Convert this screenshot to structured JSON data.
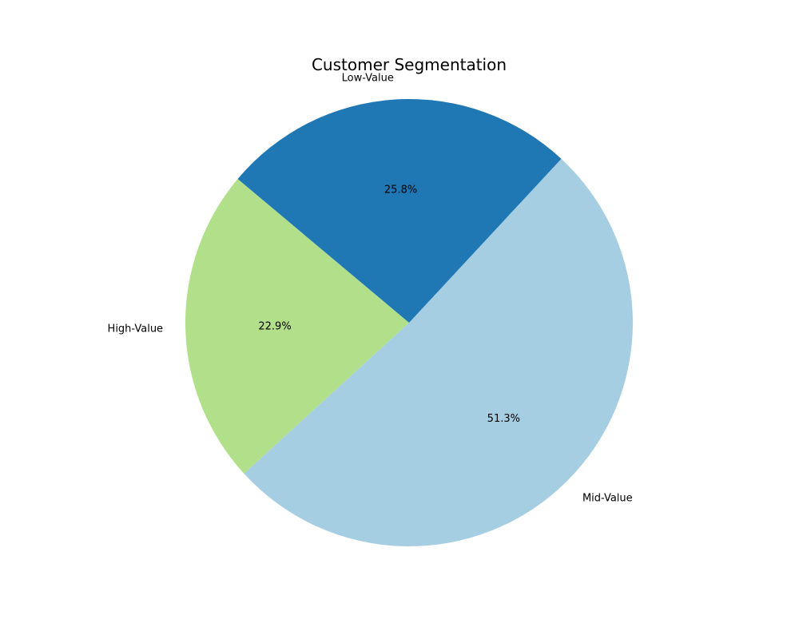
{
  "chart_data": {
    "type": "pie",
    "title": "Customer Segmentation",
    "slices": [
      {
        "label": "High-Value",
        "value": 22.9,
        "pct_label": "22.9%",
        "color": "#b2df8a"
      },
      {
        "label": "Mid-Value",
        "value": 51.3,
        "pct_label": "51.3%",
        "color": "#a6cee3"
      },
      {
        "label": "Low-Value",
        "value": 25.8,
        "pct_label": "25.8%",
        "color": "#1f78b4"
      }
    ],
    "start_angle_deg": 140,
    "direction": "counterclockwise",
    "legend": "none"
  }
}
